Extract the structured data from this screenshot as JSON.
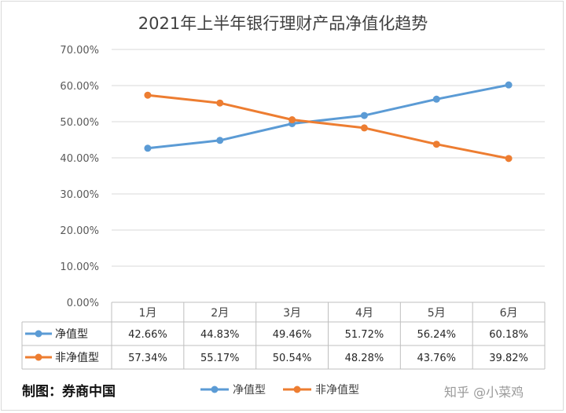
{
  "chart_data": {
    "type": "line",
    "title": "2021年上半年银行理财产品净值化趋势",
    "categories": [
      "1月",
      "2月",
      "3月",
      "4月",
      "5月",
      "6月"
    ],
    "ylim": [
      0,
      70
    ],
    "yticks": [
      "0.00%",
      "10.00%",
      "20.00%",
      "30.00%",
      "40.00%",
      "50.00%",
      "60.00%",
      "70.00%"
    ],
    "grid": true,
    "legend_position": "bottom",
    "data_table": true,
    "series": [
      {
        "name": "净值型",
        "color": "#5b9bd5",
        "values": [
          42.66,
          44.83,
          49.46,
          51.72,
          56.24,
          60.18
        ],
        "labels": [
          "42.66%",
          "44.83%",
          "49.46%",
          "51.72%",
          "56.24%",
          "60.18%"
        ]
      },
      {
        "name": "非净值型",
        "color": "#ed7d31",
        "values": [
          57.34,
          55.17,
          50.54,
          48.28,
          43.76,
          39.82
        ],
        "labels": [
          "57.34%",
          "55.17%",
          "50.54%",
          "48.28%",
          "43.76%",
          "39.82%"
        ]
      }
    ]
  },
  "footer": {
    "credit": "制图：券商中国",
    "watermark": "知乎 @小菜鸡"
  }
}
